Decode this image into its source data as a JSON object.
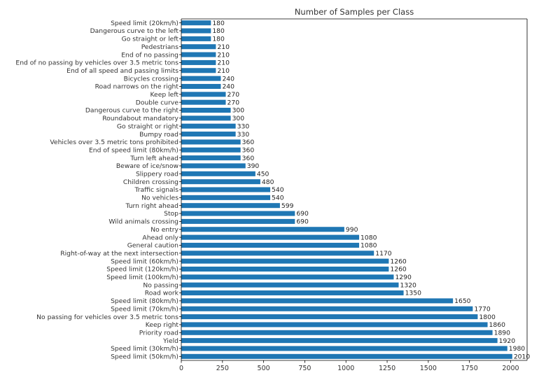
{
  "chart_data": {
    "type": "bar",
    "orientation": "horizontal",
    "title": "Number of Samples per Class",
    "xlabel": "",
    "ylabel": "",
    "xlim": [
      0,
      2100
    ],
    "x_ticks": [
      0,
      250,
      500,
      750,
      1000,
      1250,
      1500,
      1750,
      2000
    ],
    "grid": false,
    "bar_color": "#1f77b4",
    "categories": [
      "Speed limit (20km/h)",
      "Dangerous curve to the left",
      "Go straight or left",
      "Pedestrians",
      "End of no passing",
      "End of no passing by vehicles over 3.5 metric tons",
      "End of all speed and passing limits",
      "Bicycles crossing",
      "Road narrows on the right",
      "Keep left",
      "Double curve",
      "Dangerous curve to the right",
      "Roundabout mandatory",
      "Go straight or right",
      "Bumpy road",
      "Vehicles over 3.5 metric tons prohibited",
      "End of speed limit (80km/h)",
      "Turn left ahead",
      "Beware of ice/snow",
      "Slippery road",
      "Children crossing",
      "Traffic signals",
      "No vehicles",
      "Turn right ahead",
      "Stop",
      "Wild animals crossing",
      "No entry",
      "Ahead only",
      "General caution",
      "Right-of-way at the next intersection",
      "Speed limit (60km/h)",
      "Speed limit (120km/h)",
      "Speed limit (100km/h)",
      "No passing",
      "Road work",
      "Speed limit (80km/h)",
      "Speed limit (70km/h)",
      "No passing for vehicles over 3.5 metric tons",
      "Keep right",
      "Priority road",
      "Yield",
      "Speed limit (30km/h)",
      "Speed limit (50km/h)"
    ],
    "values": [
      180,
      180,
      180,
      210,
      210,
      210,
      210,
      240,
      240,
      270,
      270,
      300,
      300,
      330,
      330,
      360,
      360,
      360,
      390,
      450,
      480,
      540,
      540,
      599,
      690,
      690,
      990,
      1080,
      1080,
      1170,
      1260,
      1260,
      1290,
      1320,
      1350,
      1650,
      1770,
      1800,
      1860,
      1890,
      1920,
      1980,
      2010
    ]
  }
}
